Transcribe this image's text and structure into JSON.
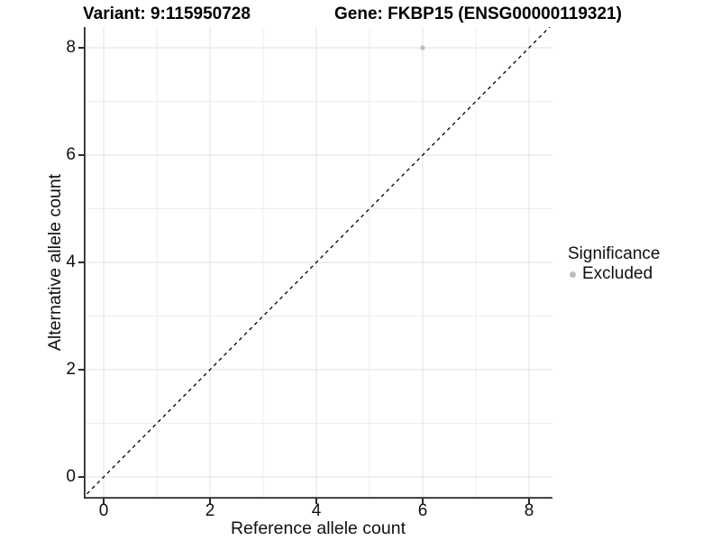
{
  "title": {
    "variant": "Variant: 9:115950728",
    "gene": "Gene: FKBP15 (ENSG00000119321)"
  },
  "axes": {
    "x": {
      "label": "Reference allele count",
      "tick_labels": [
        "0",
        "2",
        "4",
        "6",
        "8"
      ]
    },
    "y": {
      "label": "Alternative allele count",
      "tick_labels": [
        "0",
        "2",
        "4",
        "6",
        "8"
      ]
    }
  },
  "legend": {
    "title": "Significance",
    "items": [
      {
        "label": "Excluded",
        "marker": "circle",
        "color": "#bebebe"
      }
    ]
  },
  "chart_data": {
    "type": "scatter",
    "title": "Variant: 9:115950728 — Gene: FKBP15 (ENSG00000119321)",
    "xlabel": "Reference allele count",
    "ylabel": "Alternative allele count",
    "xlim": [
      -0.4,
      8.45
    ],
    "ylim": [
      -0.4,
      8.4
    ],
    "x_major_ticks": [
      0,
      2,
      4,
      6,
      8
    ],
    "y_major_ticks": [
      0,
      2,
      4,
      6,
      8
    ],
    "x_minor_ticks": [
      1,
      3,
      5,
      7
    ],
    "y_minor_ticks": [
      1,
      3,
      5,
      7
    ],
    "grid": "major+minor",
    "legend_position": "right",
    "series": [
      {
        "name": "Excluded",
        "color": "#bebebe",
        "points": [
          {
            "x": 6,
            "y": 8
          }
        ]
      }
    ],
    "reference_line": {
      "type": "identity",
      "slope": 1,
      "intercept": 0,
      "style": "dashed",
      "color": "#000000"
    }
  },
  "colors": {
    "background": "#ffffff",
    "grid_major": "#e2e2e2",
    "grid_minor": "#ededed",
    "axis": "#2b2b2b",
    "excluded_point": "#bebebe"
  }
}
